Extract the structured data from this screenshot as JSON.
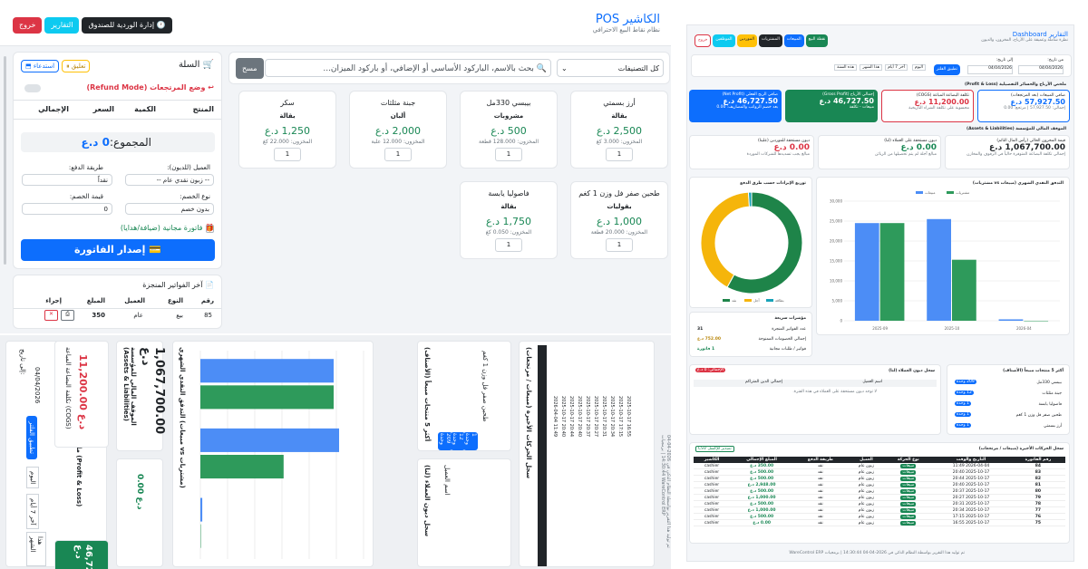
{
  "pos": {
    "title": "الكاشير POS",
    "subtitle": "نظام نقاط البيع الاحترافي",
    "buttons": {
      "shift": "إدارة الوردية للصندوق",
      "reports": "التقارير",
      "logout": "خروج"
    },
    "category_select": "كل التصنيفات",
    "search_placeholder": "بحث بالاسم، الباركود الأساسي أو الإضافي، أو باركود الميزان...",
    "clear_button": "مسح",
    "products": [
      {
        "name": "أرز بسمتي",
        "category": "بقالة",
        "price": "2,500 د.ع",
        "stock": "المخزون: 3.000 كغ",
        "qty": "1"
      },
      {
        "name": "بيبسي 330مل",
        "category": "مشروبات",
        "price": "500 د.ع",
        "stock": "المخزون: 128.000 قطعة",
        "qty": "1"
      },
      {
        "name": "جبنة مثلثات",
        "category": "ألبان",
        "price": "2,000 د.ع",
        "stock": "المخزون: 12.000 علبة",
        "qty": "1"
      },
      {
        "name": "سكر",
        "category": "بقالة",
        "price": "1,250 د.ع",
        "stock": "المخزون: 22.000 كغ",
        "qty": "1"
      },
      {
        "name": "طحين صفر فل وزن 1 كغم",
        "category": "بقوليات",
        "price": "1,000 د.ع",
        "stock": "المخزون: 20.000 قطعة",
        "qty": "1"
      },
      {
        "name": "فاصوليا يابسة",
        "category": "بقالة",
        "price": "1,750 د.ع",
        "stock": "المخزون: 0.050 كغ",
        "qty": "1"
      }
    ],
    "cart": {
      "title": "السلة",
      "hold_button": "تعليق",
      "restore_button": "استدعاء",
      "refund_label": "وضع المرتجعات (Refund Mode)",
      "columns": [
        "المنتج",
        "الكمية",
        "السعر",
        "الإجمالي"
      ],
      "total_label": "المجموع:",
      "total_value": "0 د.ع",
      "customer_label": "العميل (للديون):",
      "customer_value": "-- زبون نقدي عام --",
      "payment_label": "طريقة الدفع:",
      "payment_value": "نقداً",
      "discount_label": "نوع الخصم:",
      "discount_value": "بدون خصم",
      "discount_amount_label": "قيمة الخصم:",
      "discount_amount_value": "0",
      "free_invoice_label": "فاتورة مجانية (ضيافة/هدايا)",
      "issue_button": "إصدار الفاتورة"
    },
    "recent": {
      "title": "آخر الفواتير المنجزة",
      "columns": [
        "رقم",
        "النوع",
        "العميل",
        "المبلغ",
        "إجراء"
      ],
      "rows": [
        {
          "no": "85",
          "type": "بيع",
          "customer": "عام",
          "amount": "350"
        }
      ]
    }
  },
  "dash": {
    "title": "التقارير Dashboard",
    "subtitle": "نظرة شاملة وعميقة على الأرباح، المخزون، والديون",
    "buttons": [
      "نقطة البيع",
      "المبيعات",
      "المشتريات",
      "الموردين",
      "الموظفين",
      "خروج"
    ],
    "filter": {
      "from_label": "من تاريخ:",
      "from": "04/04/2026",
      "to_label": "إلى تاريخ:",
      "to": "04/04/2026",
      "apply": "تطبيق الفلتر",
      "ranges": [
        "اليوم",
        "آخر 7 أيام",
        "هذا الشهر",
        "هذه السنة"
      ]
    },
    "profit_title": "ملخص الأرباح والخسائر التفصيلية (Profit & Loss)",
    "kpis": [
      {
        "label": "صافي المبيعات (بعد المرتجعات)",
        "value": "57,927.50 د.ع",
        "note": "إجمالي: 57,927.50 | مرتجع: 0.00"
      },
      {
        "label": "تكلفة البضاعة المباعة (COGS)",
        "value": "11,200.00 د.ع",
        "note": "محسوبة على تكلفة الشراء التاريخية"
      },
      {
        "label": "إجمالي الأرباح (Gross Profit)",
        "value": "46,727.50 د.ع",
        "note": "مبيعات - تكلفة"
      },
      {
        "label": "صافي الربح الفعلي (Net Profit)",
        "value": "46,727.50 د.ع",
        "note": "بعد خصم الرواتب والمصاريف: 0.00"
      }
    ],
    "assets_title": "الموقف المالي للمؤسسة (Assets & Liabilities)",
    "assets": [
      {
        "label": "قيمة المخزون الحالي (رأس المال النائم)",
        "value": "1,067,700.00 د.ع",
        "note": "إجمالي تكلفة البضاعة المتوفرة حالياً في الرفوف والمخازن"
      },
      {
        "label": "ديون مستحقة على العملاء (لنا)",
        "value": "0.00 د.ع",
        "note": "مبالغ آجلة لم يتم تحصيلها من الزبائن"
      },
      {
        "label": "ديون مستحقة للموردين (علينا)",
        "value": "0.00 د.ع",
        "note": "مبالغ يجب تسديدها للشركات الموردة"
      }
    ],
    "cashflow_title": "التدفق النقدي الشهري (مبيعات vs مشتريات)",
    "donut_title": "توزيع الإيرادات حسب طرق الدفع",
    "quick_title": "مؤشرات سريعة",
    "quick": [
      {
        "label": "عدد الفواتير المنجزة",
        "value": "31"
      },
      {
        "label": "إجمالي الخصومات الممنوحة",
        "value": "752.00 د.ع"
      },
      {
        "label": "فواتير / طلبات مجانية",
        "value": "1 فاتورة"
      }
    ],
    "top_title": "أكثر 5 منتجات مبيعاً (الأصناف)",
    "top_products": [
      {
        "name": "بيبسي 330مل",
        "badge": "209 وحدة"
      },
      {
        "name": "جبنة مثلثات",
        "badge": "12 وحدة"
      },
      {
        "name": "فاصوليا يابسة",
        "badge": "1 وحدة"
      },
      {
        "name": "طحين صفر فل وزن 1 كغم",
        "badge": "1 وحدة"
      },
      {
        "name": "أرز بسمتي",
        "badge": "1 وحدة"
      }
    ],
    "debts_title": "سجل ديون العملاء (لنا)",
    "debts_badge": "الإجمالي: 0 د.ع",
    "debts_cols": [
      "اسم العميل",
      "إجمالي الدين المتراكم"
    ],
    "debts_empty": "لا توجد ديون مستحقة على العملاء في هذه الفترة.",
    "moves_title": "سجل الحركات الأخيرة (مبيعات / مرتجعات)",
    "export_button": "تصدير للإكسل CSV",
    "moves_cols": [
      "رقم الفاتورة",
      "التاريخ والوقت",
      "نوع الحركة",
      "العميل",
      "طريقة الدفع",
      "المبلغ الإجمالي",
      "الكاشير"
    ],
    "moves": [
      {
        "no": "84",
        "date": "2026-04-04 11:49",
        "type": "مبيعات",
        "customer": "زبون عام",
        "pay": "نقد",
        "amount": "350.00 د.ع",
        "cashier": "cashier"
      },
      {
        "no": "83",
        "date": "2025-10-17 20:40",
        "type": "مبيعات",
        "customer": "زبون عام",
        "pay": "نقد",
        "amount": "500.00 د.ع",
        "cashier": "cashier"
      },
      {
        "no": "82",
        "date": "2025-10-17 20:44",
        "type": "مبيعات",
        "customer": "زبون عام",
        "pay": "نقد",
        "amount": "500.00 د.ع",
        "cashier": "cashier"
      },
      {
        "no": "81",
        "date": "2025-10-17 20:40",
        "type": "مبيعات",
        "customer": "زبون عام",
        "pay": "نقد",
        "amount": "2,948.00 د.ع",
        "cashier": "cashier"
      },
      {
        "no": "80",
        "date": "2025-10-17 20:37",
        "type": "مبيعات",
        "customer": "زبون عام",
        "pay": "نقد",
        "amount": "500.00 د.ع",
        "cashier": "cashier"
      },
      {
        "no": "79",
        "date": "2025-10-17 20:27",
        "type": "مبيعات",
        "customer": "زبون عام",
        "pay": "نقد",
        "amount": "1,000.00 د.ع",
        "cashier": "cashier"
      },
      {
        "no": "78",
        "date": "2025-10-17 20:31",
        "type": "مبيعات",
        "customer": "زبون عام",
        "pay": "نقد",
        "amount": "500.00 د.ع",
        "cashier": "cashier"
      },
      {
        "no": "77",
        "date": "2025-10-17 20:34",
        "type": "مبيعات",
        "customer": "زبون عام",
        "pay": "نقد",
        "amount": "1,000.00 د.ع",
        "cashier": "cashier"
      },
      {
        "no": "76",
        "date": "2025-10-17 17:15",
        "type": "مبيعات",
        "customer": "زبون عام",
        "pay": "نقد",
        "amount": "500.00 د.ع",
        "cashier": "cashier"
      },
      {
        "no": "75",
        "date": "2025-10-17 16:55",
        "type": "مبيعات",
        "customer": "زبون عام",
        "pay": "نقد",
        "amount": "0.00 د.ع",
        "cashier": "cashier"
      }
    ],
    "footer": "تم توليد هذا التقرير بواسطة النظام الذكي في 2026-04-04 14:30:44 | برمجيات WareControl ERP"
  },
  "chart_data": [
    {
      "type": "bar",
      "title": "التدفق النقدي الشهري (مبيعات vs مشتريات)",
      "categories": [
        "2025-09",
        "2025-10",
        "2026-04"
      ],
      "series": [
        {
          "name": "مبيعات",
          "values": [
            24500,
            25500,
            350
          ]
        },
        {
          "name": "مشتريات",
          "values": [
            24500,
            15300,
            0
          ]
        }
      ],
      "ylim": [
        0,
        30000
      ],
      "yticks": [
        0,
        5000,
        10000,
        15000,
        20000,
        25000,
        30000
      ],
      "colors": [
        "#4c8df6",
        "#2e9a5b"
      ]
    },
    {
      "type": "pie",
      "title": "توزيع الإيرادات حسب طرق الدفع",
      "labels": [
        "نقد",
        "آجل",
        "بطاقة"
      ],
      "values": [
        58,
        41,
        1
      ],
      "colors": [
        "#1e8449",
        "#f5b50b",
        "#17a2b8"
      ]
    }
  ]
}
